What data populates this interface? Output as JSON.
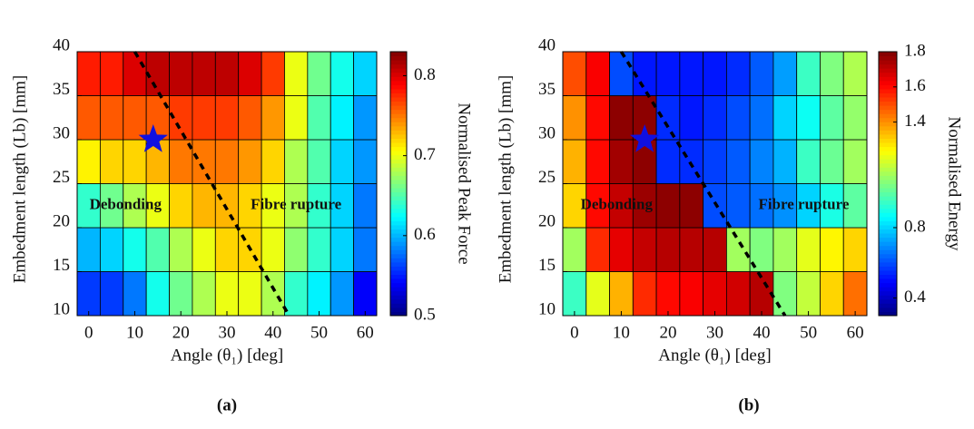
{
  "chart_data": [
    {
      "type": "heatmap",
      "caption": "(a)",
      "xlabel": "Angle (θ₁) [deg]",
      "ylabel": "Embedment length (Lb) [mm]",
      "colorbar_label": "Normalised Peak Force",
      "x": [
        0,
        5,
        10,
        15,
        20,
        25,
        30,
        35,
        40,
        45,
        50,
        55,
        60
      ],
      "ybins": [
        10,
        15,
        20,
        25,
        30,
        35,
        40
      ],
      "values": [
        [
          0.56,
          0.56,
          0.58,
          0.63,
          0.66,
          0.68,
          0.7,
          0.7,
          0.68,
          0.64,
          0.62,
          0.59,
          0.54
        ],
        [
          0.6,
          0.61,
          0.63,
          0.65,
          0.68,
          0.7,
          0.72,
          0.72,
          0.7,
          0.67,
          0.64,
          0.61,
          0.58
        ],
        [
          0.64,
          0.66,
          0.68,
          0.7,
          0.72,
          0.73,
          0.73,
          0.72,
          0.7,
          0.68,
          0.64,
          0.61,
          0.58
        ],
        [
          0.71,
          0.72,
          0.72,
          0.73,
          0.75,
          0.75,
          0.75,
          0.74,
          0.72,
          0.68,
          0.65,
          0.61,
          0.59
        ],
        [
          0.76,
          0.76,
          0.76,
          0.76,
          0.77,
          0.77,
          0.77,
          0.76,
          0.74,
          0.7,
          0.65,
          0.62,
          0.59
        ],
        [
          0.78,
          0.78,
          0.8,
          0.81,
          0.81,
          0.81,
          0.81,
          0.8,
          0.77,
          0.7,
          0.66,
          0.63,
          0.61
        ]
      ],
      "xlim": [
        -2.5,
        62.5
      ],
      "ylim": [
        10,
        40
      ],
      "xticks": [
        0,
        10,
        20,
        30,
        40,
        50,
        60
      ],
      "yticks": [
        10,
        15,
        20,
        25,
        30,
        35,
        40
      ],
      "clim": [
        0.5,
        0.83
      ],
      "cticks": [
        0.5,
        0.6,
        0.7,
        0.8
      ],
      "colormap": "jet",
      "annotations": [
        "Debonding",
        "Fibre rupture"
      ],
      "marker": {
        "x": 14,
        "y": 30,
        "color": "#1010e0"
      },
      "boundary": {
        "x": [
          10,
          43.5
        ],
        "y": [
          40,
          10
        ]
      }
    },
    {
      "type": "heatmap",
      "caption": "(b)",
      "xlabel": "Angle (θ₁) [deg]",
      "ylabel": "Embedment length (Lb) [mm]",
      "colorbar_label": "Normalised Energy",
      "x": [
        0,
        5,
        10,
        15,
        20,
        25,
        30,
        35,
        40,
        45,
        50,
        55,
        60
      ],
      "ybins": [
        10,
        15,
        20,
        25,
        30,
        35,
        40
      ],
      "values": [
        [
          0.95,
          1.2,
          1.35,
          1.55,
          1.6,
          1.62,
          1.65,
          1.68,
          1.72,
          1.05,
          1.15,
          1.3,
          1.45
        ],
        [
          1.1,
          1.55,
          1.65,
          1.7,
          1.72,
          1.72,
          1.72,
          1.1,
          1.05,
          1.1,
          1.2,
          1.25,
          1.3
        ],
        [
          1.3,
          1.6,
          1.7,
          1.76,
          1.78,
          1.78,
          0.6,
          0.62,
          0.65,
          0.7,
          0.8,
          0.9,
          1.0
        ],
        [
          1.35,
          1.6,
          1.75,
          1.78,
          0.55,
          0.55,
          0.58,
          0.62,
          0.68,
          0.75,
          0.95,
          1.02,
          1.1
        ],
        [
          1.4,
          1.6,
          1.78,
          1.78,
          0.55,
          0.52,
          0.55,
          0.6,
          0.65,
          0.8,
          0.88,
          1.0,
          1.08
        ],
        [
          1.5,
          1.62,
          0.6,
          0.52,
          0.52,
          0.52,
          0.52,
          0.55,
          0.62,
          0.72,
          0.95,
          1.05,
          1.12
        ]
      ],
      "xlim": [
        -2.5,
        62.5
      ],
      "ylim": [
        10,
        40
      ],
      "xticks": [
        0,
        10,
        20,
        30,
        40,
        50,
        60
      ],
      "yticks": [
        10,
        15,
        20,
        25,
        30,
        35,
        40
      ],
      "clim": [
        0.3,
        1.8
      ],
      "cticks": [
        0.4,
        0.8,
        1.4,
        1.6,
        1.8
      ],
      "colormap": "jet",
      "annotations": [
        "Debonding",
        "Fibre rupture"
      ],
      "marker": {
        "x": 15,
        "y": 30,
        "color": "#1010e0"
      },
      "boundary": {
        "x": [
          10,
          45
        ],
        "y": [
          40,
          10
        ]
      }
    }
  ]
}
